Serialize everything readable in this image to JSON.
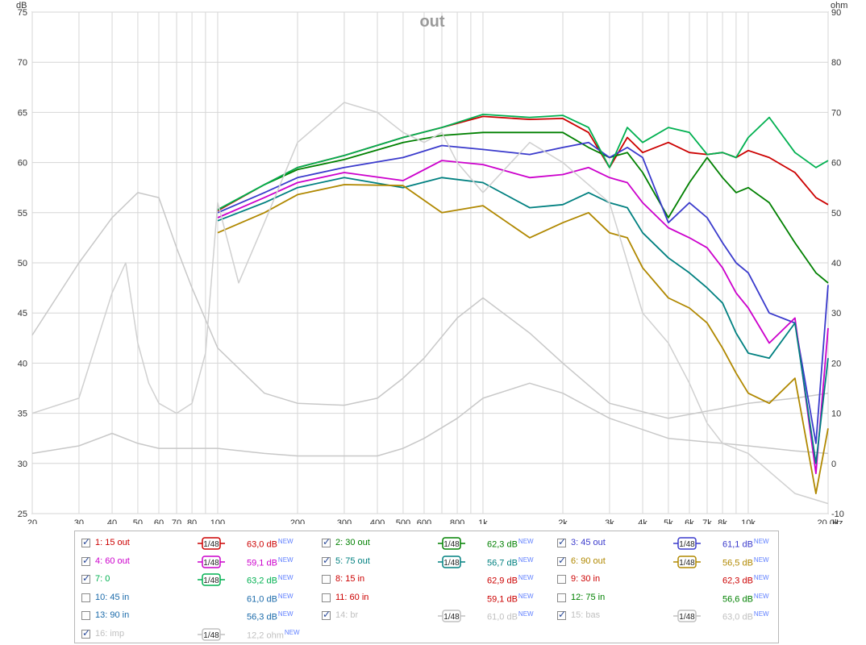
{
  "chart_data": {
    "type": "line",
    "title": "out",
    "ylabel": "dB",
    "y2label": "ohm",
    "xlabel_unit": "Hz",
    "xscale": "log",
    "xlim": [
      20,
      20000
    ],
    "ylim": [
      25,
      75
    ],
    "y2lim": [
      -10,
      90
    ],
    "grid": true,
    "x_ticks": [
      "20",
      "30",
      "40",
      "50",
      "60",
      "70",
      "80",
      "100",
      "200",
      "300",
      "400",
      "500",
      "600",
      "800",
      "1k",
      "2k",
      "3k",
      "4k",
      "5k",
      "6k",
      "7k",
      "8k",
      "10k",
      "20,0k"
    ],
    "x_tick_values": [
      20,
      30,
      40,
      50,
      60,
      70,
      80,
      100,
      200,
      300,
      400,
      500,
      600,
      800,
      1000,
      2000,
      3000,
      4000,
      5000,
      6000,
      7000,
      8000,
      10000,
      20000
    ],
    "y_ticks": [
      25,
      30,
      35,
      40,
      45,
      50,
      55,
      60,
      65,
      70,
      75
    ],
    "y2_ticks": [
      -10,
      0,
      10,
      20,
      30,
      40,
      50,
      60,
      70,
      80,
      90
    ],
    "series": [
      {
        "name": "1: 15 out",
        "color": "#cc0000",
        "x": [
          100,
          150,
          200,
          300,
          500,
          700,
          1000,
          1500,
          2000,
          2500,
          3000,
          3500,
          4000,
          5000,
          6000,
          7000,
          8000,
          9000,
          10000,
          12000,
          15000,
          18000,
          20000
        ],
        "y": [
          55.2,
          57.8,
          59.5,
          60.7,
          62.5,
          63.5,
          64.6,
          64.3,
          64.4,
          63.0,
          59.5,
          62.5,
          61.0,
          62.0,
          61.0,
          60.8,
          61.0,
          60.5,
          61.2,
          60.5,
          59.0,
          56.5,
          55.8
        ]
      },
      {
        "name": "2: 30 out",
        "color": "#008000",
        "x": [
          100,
          150,
          200,
          300,
          500,
          700,
          1000,
          1500,
          2000,
          2500,
          3000,
          3500,
          4000,
          5000,
          6000,
          7000,
          8000,
          9000,
          10000,
          12000,
          15000,
          18000,
          20000
        ],
        "y": [
          55.3,
          57.8,
          59.3,
          60.3,
          62.0,
          62.7,
          63.0,
          63.0,
          63.0,
          61.5,
          60.5,
          61.0,
          59.0,
          54.5,
          58.0,
          60.5,
          58.5,
          57.0,
          57.5,
          56.0,
          52.0,
          49.0,
          48.0
        ]
      },
      {
        "name": "3: 45 out",
        "color": "#3a3acc",
        "x": [
          100,
          150,
          200,
          300,
          500,
          700,
          1000,
          1500,
          2000,
          2500,
          3000,
          3500,
          4000,
          5000,
          6000,
          7000,
          8000,
          9000,
          10000,
          12000,
          15000,
          18000,
          20000
        ],
        "y": [
          55.0,
          57.0,
          58.5,
          59.5,
          60.5,
          61.7,
          61.3,
          60.8,
          61.5,
          62.0,
          60.5,
          61.5,
          60.5,
          54.0,
          56.0,
          54.5,
          52.0,
          50.0,
          49.0,
          45.0,
          44.0,
          32.0,
          47.8
        ]
      },
      {
        "name": "4: 60 out",
        "color": "#cc00cc",
        "x": [
          100,
          150,
          200,
          300,
          500,
          700,
          1000,
          1500,
          2000,
          2500,
          3000,
          3500,
          4000,
          5000,
          6000,
          7000,
          8000,
          9000,
          10000,
          12000,
          15000,
          18000,
          20000
        ],
        "y": [
          54.5,
          56.5,
          58.0,
          59.0,
          58.2,
          60.2,
          59.8,
          58.5,
          58.8,
          59.5,
          58.5,
          58.0,
          56.0,
          53.5,
          52.5,
          51.5,
          49.5,
          47.0,
          45.5,
          42.0,
          44.5,
          29.0,
          43.5
        ]
      },
      {
        "name": "5: 75 out",
        "color": "#008080",
        "x": [
          100,
          150,
          200,
          300,
          500,
          700,
          1000,
          1500,
          2000,
          2500,
          3000,
          3500,
          4000,
          5000,
          6000,
          7000,
          8000,
          9000,
          10000,
          12000,
          15000,
          18000,
          20000
        ],
        "y": [
          54.2,
          56.0,
          57.5,
          58.5,
          57.5,
          58.5,
          58.0,
          55.5,
          55.8,
          57.0,
          56.0,
          55.5,
          53.0,
          50.5,
          49.0,
          47.5,
          46.0,
          43.0,
          41.0,
          40.5,
          44.0,
          30.0,
          40.5
        ]
      },
      {
        "name": "6: 90 out",
        "color": "#b08800",
        "x": [
          100,
          150,
          200,
          300,
          500,
          700,
          1000,
          1500,
          2000,
          2500,
          3000,
          3500,
          4000,
          5000,
          6000,
          7000,
          8000,
          9000,
          10000,
          12000,
          15000,
          18000,
          20000
        ],
        "y": [
          53.0,
          55.0,
          56.8,
          57.8,
          57.7,
          55.0,
          55.7,
          52.5,
          54.0,
          55.0,
          53.0,
          52.5,
          49.5,
          46.5,
          45.5,
          44.0,
          41.5,
          39.0,
          37.0,
          36.0,
          38.5,
          27.0,
          33.5
        ]
      },
      {
        "name": "7: 0",
        "color": "#00b050",
        "x": [
          100,
          150,
          200,
          300,
          500,
          700,
          1000,
          1500,
          2000,
          2500,
          3000,
          3500,
          4000,
          5000,
          6000,
          7000,
          8000,
          9000,
          10000,
          12000,
          15000,
          18000,
          20000
        ],
        "y": [
          55.3,
          57.8,
          59.5,
          60.7,
          62.5,
          63.5,
          64.8,
          64.5,
          64.7,
          63.5,
          59.5,
          63.5,
          62.0,
          63.5,
          63.0,
          60.8,
          61.0,
          60.5,
          62.5,
          64.5,
          61.0,
          59.5,
          60.2
        ]
      },
      {
        "name": "imp",
        "color": "#c8c8c8",
        "axis": "right",
        "x": [
          20,
          30,
          40,
          50,
          60,
          70,
          80,
          100,
          150,
          200,
          300,
          400,
          500,
          600,
          800,
          1000,
          1500,
          2000,
          3000,
          5000,
          8000,
          10000,
          15000,
          20000
        ],
        "y": [
          2,
          3.5,
          6,
          4,
          3,
          3,
          3,
          3,
          2,
          1.5,
          1.5,
          1.5,
          3,
          5,
          9,
          13,
          16,
          14,
          9,
          5,
          4,
          3.5,
          2.5,
          2
        ]
      },
      {
        "name": "bas",
        "color": "#c8c8c8",
        "x": [
          20,
          30,
          40,
          50,
          60,
          70,
          80,
          100,
          150,
          200,
          300,
          400,
          500,
          600,
          800,
          1000,
          1500,
          2000,
          3000,
          5000,
          8000,
          10000,
          15000,
          20000
        ],
        "y": [
          42.8,
          50.0,
          54.5,
          57.0,
          56.5,
          51.5,
          47.5,
          41.5,
          37.0,
          36.0,
          35.8,
          36.5,
          38.5,
          40.5,
          44.5,
          46.5,
          43.0,
          40.0,
          36.0,
          34.5,
          35.5,
          36.0,
          36.5,
          37.0
        ]
      },
      {
        "name": "br",
        "color": "#d0d0d0",
        "x": [
          20,
          30,
          40,
          45,
          50,
          55,
          60,
          70,
          80,
          90,
          100,
          120,
          150,
          200,
          300,
          400,
          500,
          600,
          700,
          800,
          1000,
          1500,
          2000,
          3000,
          4000,
          5000,
          6000,
          7000,
          8000,
          10000,
          15000,
          20000
        ],
        "y": [
          35,
          36.5,
          47,
          50,
          42,
          38,
          36,
          35,
          36,
          41,
          56,
          48,
          54,
          62,
          66,
          65,
          63,
          62,
          63,
          60,
          57,
          62,
          60,
          56,
          45,
          42,
          38,
          34,
          32,
          31,
          27,
          26
        ]
      }
    ],
    "legend": {
      "placement": "bottom",
      "rows": [
        [
          {
            "num": "1: 15 out",
            "checked": true,
            "color": "#cc0000",
            "smooth": "1/48",
            "value": "63,0 dB"
          },
          {
            "num": "2: 30 out",
            "checked": true,
            "color": "#008000",
            "smooth": "1/48",
            "value": "62,3 dB"
          },
          {
            "num": "3: 45 out",
            "checked": true,
            "color": "#3a3acc",
            "smooth": "1/48",
            "value": "61,1 dB"
          }
        ],
        [
          {
            "num": "4: 60 out",
            "checked": true,
            "color": "#cc00cc",
            "smooth": "1/48",
            "value": "59,1 dB"
          },
          {
            "num": "5: 75 out",
            "checked": true,
            "color": "#008080",
            "smooth": "1/48",
            "value": "56,7 dB"
          },
          {
            "num": "6: 90 out",
            "checked": true,
            "color": "#b08800",
            "smooth": "1/48",
            "value": "56,5 dB"
          }
        ],
        [
          {
            "num": "7: 0",
            "checked": true,
            "color": "#00b050",
            "smooth": "1/48",
            "value": "63,2 dB"
          },
          {
            "num": "8: 15 in",
            "checked": false,
            "color": "#cc0000",
            "smooth": "",
            "value": "62,9 dB"
          },
          {
            "num": "9: 30 in",
            "checked": false,
            "color": "#cc0000",
            "smooth": "",
            "value": "62,3 dB"
          }
        ],
        [
          {
            "num": "10: 45 in",
            "checked": false,
            "color": "#1a6aaa",
            "smooth": "",
            "value": "61,0 dB"
          },
          {
            "num": "11: 60 in",
            "checked": false,
            "color": "#cc0000",
            "smooth": "",
            "value": "59,1 dB"
          },
          {
            "num": "12: 75 in",
            "checked": false,
            "color": "#008000",
            "smooth": "",
            "value": "56,6 dB"
          }
        ],
        [
          {
            "num": "13: 90 in",
            "checked": false,
            "color": "#1a6aaa",
            "smooth": "",
            "value": "56,3 dB"
          },
          {
            "num": "14: br",
            "checked": true,
            "color": "#c0c0c0",
            "smooth": "1/48",
            "value": "61,0 dB"
          },
          {
            "num": "15: bas",
            "checked": true,
            "color": "#c0c0c0",
            "smooth": "1/48",
            "value": "63,0 dB"
          }
        ],
        [
          {
            "num": "16: imp",
            "checked": true,
            "color": "#c0c0c0",
            "smooth": "1/48",
            "value": "12,2 ohm"
          }
        ]
      ],
      "new_badge": "NEW"
    }
  }
}
